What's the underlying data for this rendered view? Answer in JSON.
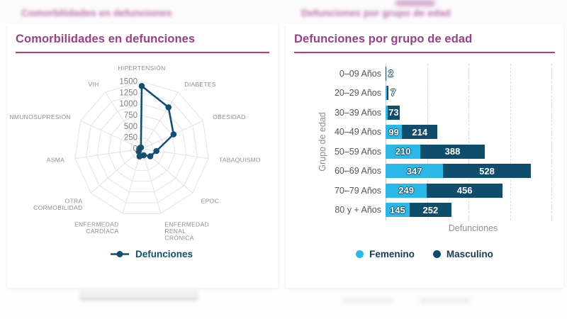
{
  "header_blur": {
    "left": "Comorbilidades en defunciones",
    "right": "Defunciones por grupo de edad"
  },
  "cards": {
    "left": {
      "title": "Comorbilidades en defunciones",
      "legend_label": "Defunciones"
    },
    "right": {
      "title": "Defunciones por grupo de edad",
      "ylabel": "Grupo de edad",
      "xlabel": "Defunciones",
      "legend": [
        {
          "label": "Femenino",
          "color": "#29b8e8"
        },
        {
          "label": "Masculino",
          "color": "#0f4d6d"
        }
      ]
    }
  },
  "chart_data": [
    {
      "type": "radar",
      "title": "Comorbilidades en defunciones",
      "series_name": "Defunciones",
      "categories": [
        "HIPERTENSIÓN",
        "DIABETES",
        "OBESIDAD",
        "TABAQUISMO",
        "EPOC",
        "ENFERMEDAD RENAL CRÓNICA",
        "ENFERMEDAD CARDÍACA",
        "OTRA CORMOBILIDAD",
        "ASMA",
        "NMUNOSUPRESIÓN",
        "VIH"
      ],
      "values": [
        1400,
        1100,
        780,
        330,
        250,
        150,
        175,
        90,
        60,
        45,
        35
      ],
      "ticks": [
        0,
        250,
        500,
        750,
        1000,
        1250,
        1500
      ],
      "rmax": 1500,
      "grid": "polygon-web",
      "line_color": "#134f70",
      "legend_position": "bottom"
    },
    {
      "type": "stacked-bar-horizontal",
      "title": "Defunciones por grupo de edad",
      "categories": [
        "0–09 Años",
        "20–29 Años",
        "30–39 Años",
        "40–49 Años",
        "50–59 Años",
        "60–69 Años",
        "70–79 Años",
        "80 y + Años"
      ],
      "series": [
        {
          "name": "Femenino",
          "color": "#29b8e8",
          "values": [
            1,
            10,
            12,
            99,
            210,
            347,
            249,
            145
          ]
        },
        {
          "name": "Masculino",
          "color": "#0f4d6d",
          "values": [
            2,
            7,
            73,
            214,
            388,
            528,
            456,
            252
          ]
        }
      ],
      "visible_value_labels": [
        [
          null,
          2
        ],
        [
          null,
          7
        ],
        [
          null,
          73
        ],
        [
          99,
          214
        ],
        [
          210,
          388
        ],
        [
          347,
          528
        ],
        [
          249,
          456
        ],
        [
          145,
          252
        ]
      ],
      "xlabel": "Defunciones",
      "ylabel": "Grupo de edad",
      "xlim": [
        0,
        1050
      ],
      "gridlines": [
        0,
        250,
        500,
        750,
        1000
      ],
      "grid_style": "dashed-vertical",
      "legend_position": "bottom"
    }
  ],
  "colors": {
    "title_magenta": "#9d3e88",
    "underline_pink": "#c0388b",
    "blur_pink": "#a84b94",
    "femenino_cyan": "#29b8e8",
    "masculino_navy": "#0f4d6d",
    "radar_line": "#134f70",
    "web_gray": "#e2e2e2",
    "tick_gray": "#808080",
    "axis_label_gray": "#8f8f8f"
  }
}
